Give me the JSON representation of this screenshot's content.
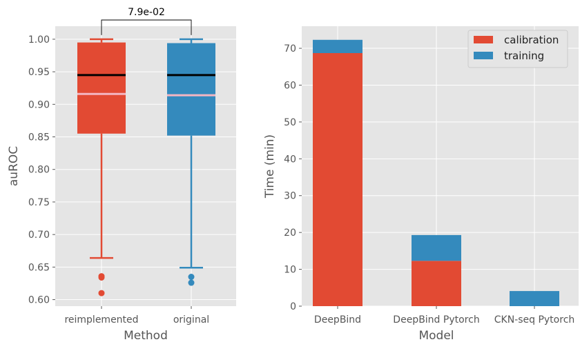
{
  "chart_data": [
    {
      "type": "box",
      "xlabel": "Method",
      "ylabel": "auROC",
      "ylim": [
        0.59,
        1.02
      ],
      "yticks": [
        "0.60",
        "0.65",
        "0.70",
        "0.75",
        "0.80",
        "0.85",
        "0.90",
        "0.95",
        "1.00"
      ],
      "grid": true,
      "categories": [
        "reimplemented",
        "original"
      ],
      "boxes": [
        {
          "name": "reimplemented",
          "color": "#E24A33",
          "q1": 0.855,
          "q3": 0.995,
          "median": 0.945,
          "mean": 0.916,
          "whisker_low": 0.664,
          "whisker_high": 1.0,
          "outliers": [
            0.636,
            0.634,
            0.61
          ]
        },
        {
          "name": "original",
          "color": "#348ABD",
          "q1": 0.852,
          "q3": 0.994,
          "median": 0.945,
          "mean": 0.914,
          "whisker_low": 0.649,
          "whisker_high": 1.0,
          "outliers": [
            0.635,
            0.626
          ]
        }
      ],
      "median_color": "#000000",
      "mean_color": "#F4B6C2",
      "annotation": {
        "text": "7.9e-02",
        "between": [
          "reimplemented",
          "original"
        ]
      }
    },
    {
      "type": "bar",
      "stacked": true,
      "xlabel": "Model",
      "ylabel": "Time (min)",
      "ylim": [
        0,
        76
      ],
      "yticks": [
        "0",
        "10",
        "20",
        "30",
        "40",
        "50",
        "60",
        "70"
      ],
      "grid": true,
      "legend": "top-right",
      "categories": [
        "DeepBind",
        "DeepBind Pytorch",
        "CKN-seq Pytorch"
      ],
      "series": [
        {
          "name": "calibration",
          "color": "#E24A33",
          "values": [
            68.7,
            12.3,
            0
          ]
        },
        {
          "name": "training",
          "color": "#348ABD",
          "values": [
            3.6,
            7.0,
            4.1
          ]
        }
      ]
    }
  ]
}
